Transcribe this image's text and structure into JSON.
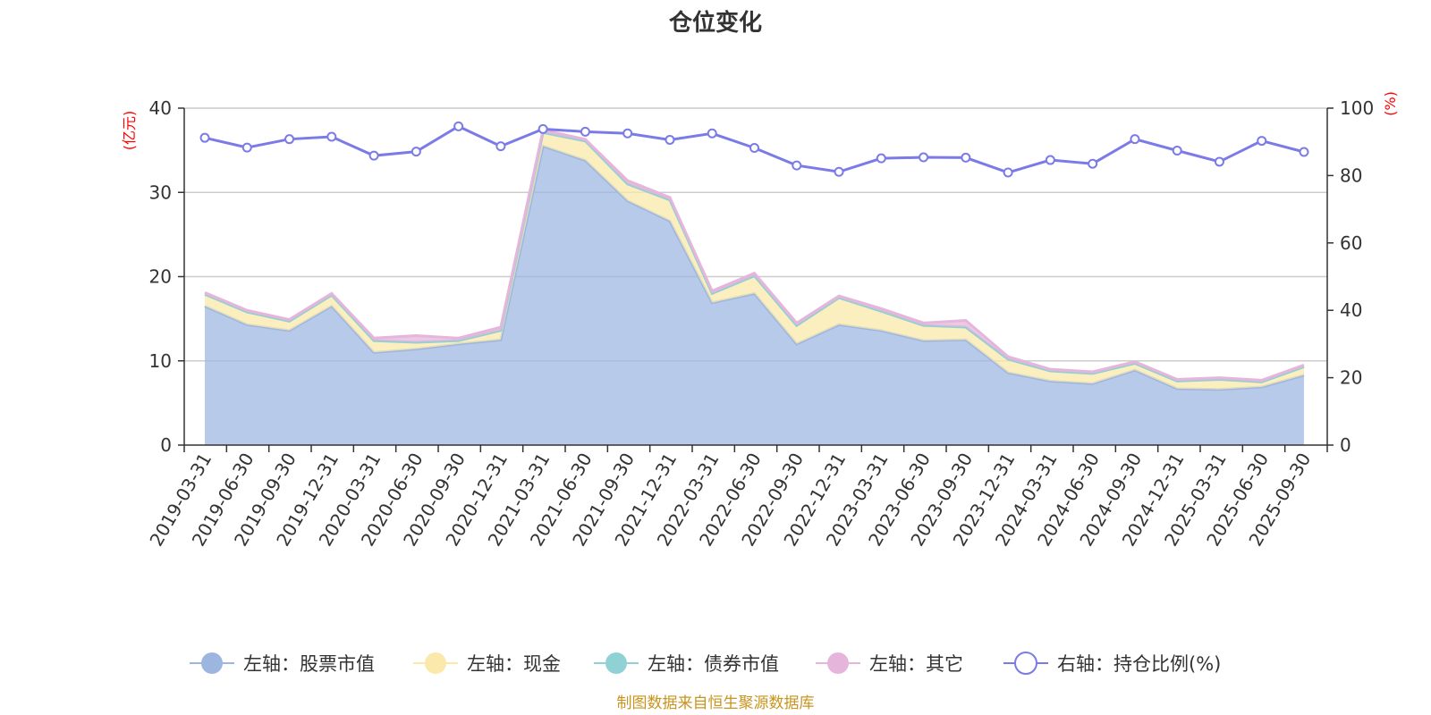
{
  "title": "仓位变化",
  "source": "制图数据来自恒生聚源数据库",
  "colors": {
    "stock": "#9db6e0",
    "cash": "#fae9ab",
    "bond": "#8fd1d4",
    "other": "#e6b5dc",
    "ratio": "#7b7be8",
    "grid": "#cccccc",
    "axis": "#333333",
    "unit": "#ff0000"
  },
  "chart_data": {
    "type": "area",
    "title": "仓位变化",
    "left_axis": {
      "unit": "(亿元)",
      "ylim": [
        0,
        40
      ],
      "ticks": [
        0,
        10,
        20,
        30,
        40
      ]
    },
    "right_axis": {
      "unit": "(%)",
      "ylim": [
        0,
        100
      ],
      "ticks": [
        0,
        20,
        40,
        60,
        80,
        100
      ]
    },
    "stacked": true,
    "grid": true,
    "legend_position": "bottom",
    "x": [
      "2019-03-31",
      "2019-06-30",
      "2019-09-30",
      "2019-12-31",
      "2020-03-31",
      "2020-06-30",
      "2020-09-30",
      "2020-12-31",
      "2021-03-31",
      "2021-06-30",
      "2021-09-30",
      "2021-12-31",
      "2022-03-31",
      "2022-06-30",
      "2022-09-30",
      "2022-12-31",
      "2023-03-31",
      "2023-06-30",
      "2023-09-30",
      "2023-12-31",
      "2024-03-31",
      "2024-06-30",
      "2024-09-30",
      "2024-12-31",
      "2025-03-31",
      "2025-06-30",
      "2025-09-30"
    ],
    "series": [
      {
        "key": "stock",
        "name": "左轴：股票市值",
        "axis": "left",
        "values": [
          16.5,
          14.3,
          13.6,
          16.5,
          11.0,
          11.4,
          12.0,
          12.5,
          35.5,
          33.8,
          29.0,
          26.6,
          16.9,
          18.0,
          12.0,
          14.3,
          13.6,
          12.4,
          12.5,
          8.6,
          7.6,
          7.3,
          8.9,
          6.7,
          6.6,
          6.9,
          8.3
        ]
      },
      {
        "key": "cash",
        "name": "左轴：现金",
        "axis": "left",
        "values": [
          1.4,
          1.5,
          1.1,
          1.3,
          1.4,
          0.8,
          0.4,
          1.1,
          1.6,
          2.3,
          2.0,
          2.5,
          1.1,
          2.1,
          2.2,
          3.2,
          2.3,
          1.8,
          1.5,
          1.6,
          1.2,
          1.2,
          0.8,
          0.9,
          1.2,
          0.6,
          1.0
        ]
      },
      {
        "key": "bond",
        "name": "左轴：债券市值",
        "axis": "left",
        "values": [
          0,
          0,
          0,
          0,
          0,
          0,
          0,
          0,
          0,
          0,
          0,
          0,
          0,
          0,
          0,
          0,
          0,
          0,
          0,
          0,
          0,
          0,
          0,
          0,
          0,
          0,
          0
        ]
      },
      {
        "key": "other",
        "name": "左轴：其它",
        "axis": "left",
        "values": [
          0.2,
          0.2,
          0.2,
          0.2,
          0.3,
          0.8,
          0.3,
          0.4,
          0.3,
          0.2,
          0.4,
          0.3,
          0.3,
          0.3,
          0.3,
          0.2,
          0.3,
          0.3,
          0.8,
          0.3,
          0.2,
          0.2,
          0.2,
          0.2,
          0.2,
          0.2,
          0.2
        ]
      },
      {
        "key": "ratio",
        "name": "右轴：持仓比例(%)",
        "axis": "right",
        "type": "line",
        "values": [
          91.2,
          88.3,
          90.8,
          91.5,
          85.9,
          87.1,
          94.6,
          88.7,
          93.8,
          93.0,
          92.5,
          90.6,
          92.5,
          88.2,
          83.0,
          81.1,
          85.1,
          85.4,
          85.3,
          80.9,
          84.6,
          83.5,
          90.8,
          87.4,
          84.1,
          90.3,
          87.0
        ]
      }
    ]
  }
}
